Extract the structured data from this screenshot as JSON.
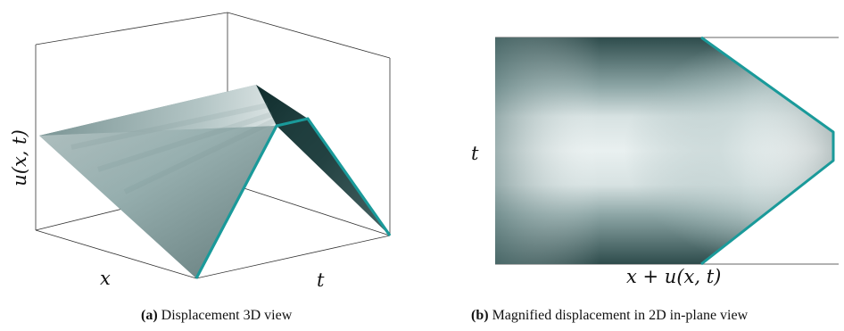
{
  "panel_a": {
    "ylabel": "u(x, t)",
    "xlabel": "x",
    "tlabel": "t",
    "caption_tag": "(a)",
    "caption_text": "Displacement 3D view"
  },
  "panel_b": {
    "ylabel": "t",
    "xlabel": "x + u(x, t)",
    "caption_tag": "(b)",
    "caption_text": "Magnified displacement in 2D in-plane view"
  },
  "colors": {
    "boundary": "#1a9a9a",
    "dark": "#0f2c2c",
    "light": "#f4f7f7",
    "frame": "#333333"
  }
}
